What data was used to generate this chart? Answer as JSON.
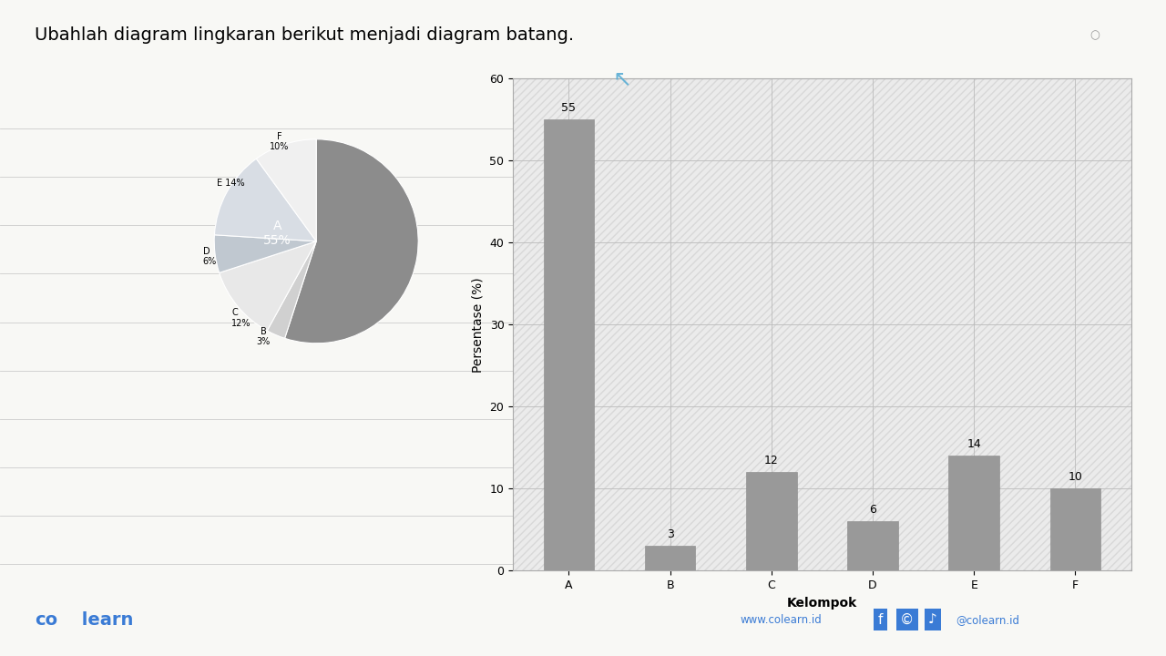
{
  "title": "Ubahlah diagram lingkaran berikut menjadi diagram batang.",
  "categories": [
    "A",
    "B",
    "C",
    "D",
    "E",
    "F"
  ],
  "values": [
    55,
    3,
    12,
    6,
    14,
    10
  ],
  "pie_colors": [
    "#8c8c8c",
    "#d0d0d0",
    "#e8e8e8",
    "#c0c8d0",
    "#d8dde4",
    "#f0f0f0"
  ],
  "bar_color": "#999999",
  "xlabel": "Kelompok",
  "ylabel": "Persentase (%)",
  "ylim": [
    0,
    60
  ],
  "yticks": [
    0,
    10,
    20,
    30,
    40,
    50,
    60
  ],
  "bg_color": "#f8f8f5",
  "bar_bg_color": "#ebebeb",
  "hatch_color": "#d8d8d8",
  "footer_color": "#3a7bd5",
  "title_fontsize": 14,
  "axis_label_fontsize": 10,
  "tick_fontsize": 9,
  "bar_label_fontsize": 9,
  "pie_label_fontsize": 8
}
